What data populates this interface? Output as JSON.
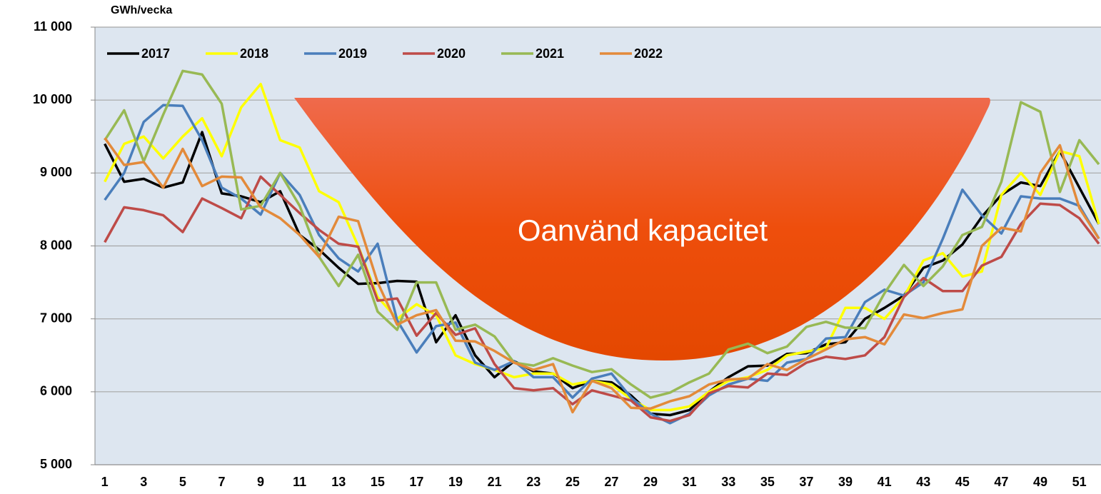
{
  "chart_data": {
    "type": "line",
    "y_label": "GWh/vecka",
    "annotation": "Oanvänd kapacitet",
    "categories": [
      1,
      null,
      3,
      null,
      5,
      null,
      7,
      null,
      9,
      null,
      11,
      null,
      13,
      null,
      15,
      null,
      17,
      null,
      19,
      null,
      21,
      null,
      23,
      null,
      25,
      null,
      27,
      null,
      29,
      null,
      31,
      null,
      33,
      null,
      35,
      null,
      37,
      null,
      39,
      null,
      41,
      null,
      43,
      null,
      45,
      null,
      47,
      null,
      49,
      null,
      51,
      null
    ],
    "ylim": [
      5000,
      11000
    ],
    "yticks": [
      {
        "value": 5000,
        "label": "5 000"
      },
      {
        "value": 6000,
        "label": "6 000"
      },
      {
        "value": 7000,
        "label": "7 000"
      },
      {
        "value": 8000,
        "label": "8 000"
      },
      {
        "value": 9000,
        "label": "9 000"
      },
      {
        "value": 10000,
        "label": "10 000"
      },
      {
        "value": 11000,
        "label": "11 000"
      }
    ],
    "grid": true,
    "legend": "top-left",
    "series": [
      {
        "name": "2017",
        "color": "#000000",
        "values": [
          9400,
          8880,
          8920,
          8800,
          8870,
          9560,
          8720,
          8680,
          8600,
          8750,
          8150,
          7950,
          7700,
          7480,
          7490,
          7520,
          7510,
          6680,
          7050,
          6500,
          6200,
          6420,
          6280,
          6250,
          6050,
          6150,
          6130,
          5950,
          5700,
          5680,
          5750,
          6000,
          6200,
          6350,
          6360,
          6520,
          6530,
          6650,
          6680,
          7000,
          7150,
          7320,
          7700,
          7800,
          8020,
          8400,
          8700,
          8870,
          8820,
          9300,
          8800,
          8300
        ]
      },
      {
        "name": "2018",
        "color": "#ffff00",
        "values": [
          8880,
          9400,
          9500,
          9200,
          9500,
          9750,
          9230,
          9900,
          10220,
          9450,
          9350,
          8750,
          8600,
          8000,
          7300,
          7000,
          7200,
          7050,
          6500,
          6380,
          6300,
          6200,
          6250,
          6250,
          6100,
          6150,
          6100,
          5900,
          5750,
          5750,
          5800,
          6000,
          6150,
          6200,
          6300,
          6500,
          6550,
          6600,
          7150,
          7150,
          7000,
          7300,
          7800,
          7900,
          7580,
          7650,
          8700,
          9000,
          8700,
          9300,
          9230,
          8300
        ]
      },
      {
        "name": "2019",
        "color": "#4a7ebb",
        "values": [
          8630,
          9000,
          9700,
          9930,
          9920,
          9450,
          8800,
          8650,
          8430,
          9000,
          8700,
          8150,
          7830,
          7650,
          8030,
          6980,
          6540,
          6900,
          6950,
          6400,
          6300,
          6420,
          6200,
          6200,
          5920,
          6180,
          6250,
          5920,
          5700,
          5570,
          5700,
          5950,
          6100,
          6180,
          6150,
          6400,
          6450,
          6730,
          6750,
          7230,
          7400,
          7320,
          7500,
          8100,
          8770,
          8420,
          8170,
          8680,
          8650,
          8650,
          8550,
          8100
        ]
      },
      {
        "name": "2020",
        "color": "#be4b48",
        "values": [
          8050,
          8530,
          8490,
          8420,
          8190,
          8650,
          8520,
          8380,
          8950,
          8700,
          8450,
          8220,
          8030,
          7990,
          7250,
          7280,
          6770,
          7080,
          6780,
          6870,
          6380,
          6050,
          6020,
          6050,
          5830,
          6020,
          5950,
          5880,
          5650,
          5600,
          5680,
          5980,
          6080,
          6060,
          6250,
          6230,
          6400,
          6480,
          6450,
          6500,
          6750,
          7300,
          7560,
          7380,
          7380,
          7730,
          7850,
          8300,
          8580,
          8560,
          8380,
          8030
        ]
      },
      {
        "name": "2021",
        "color": "#98b954",
        "values": [
          9450,
          9860,
          9160,
          9800,
          10400,
          10350,
          9950,
          8500,
          8550,
          9000,
          8550,
          7850,
          7450,
          7880,
          7100,
          6850,
          7500,
          7500,
          6850,
          6920,
          6760,
          6400,
          6360,
          6460,
          6360,
          6270,
          6310,
          6100,
          5920,
          5990,
          6130,
          6250,
          6580,
          6660,
          6530,
          6620,
          6890,
          6960,
          6880,
          6870,
          7350,
          7740,
          7450,
          7720,
          8150,
          8260,
          8880,
          9970,
          9840,
          8740,
          9450,
          9120
        ]
      },
      {
        "name": "2022",
        "color": "#e38a3a",
        "values": [
          9480,
          9110,
          9150,
          8800,
          9330,
          8820,
          8950,
          8940,
          8530,
          8380,
          8150,
          7850,
          8400,
          8340,
          7500,
          6920,
          7050,
          7120,
          6700,
          6690,
          6560,
          6400,
          6300,
          6380,
          5720,
          6150,
          6050,
          5780,
          5770,
          5870,
          5940,
          6100,
          6170,
          6180,
          6380,
          6300,
          6450,
          6580,
          6720,
          6750,
          6650,
          7060,
          7010,
          7080,
          7130,
          8000,
          8250,
          8200,
          9000,
          9380,
          8520,
          8100
        ]
      }
    ]
  }
}
